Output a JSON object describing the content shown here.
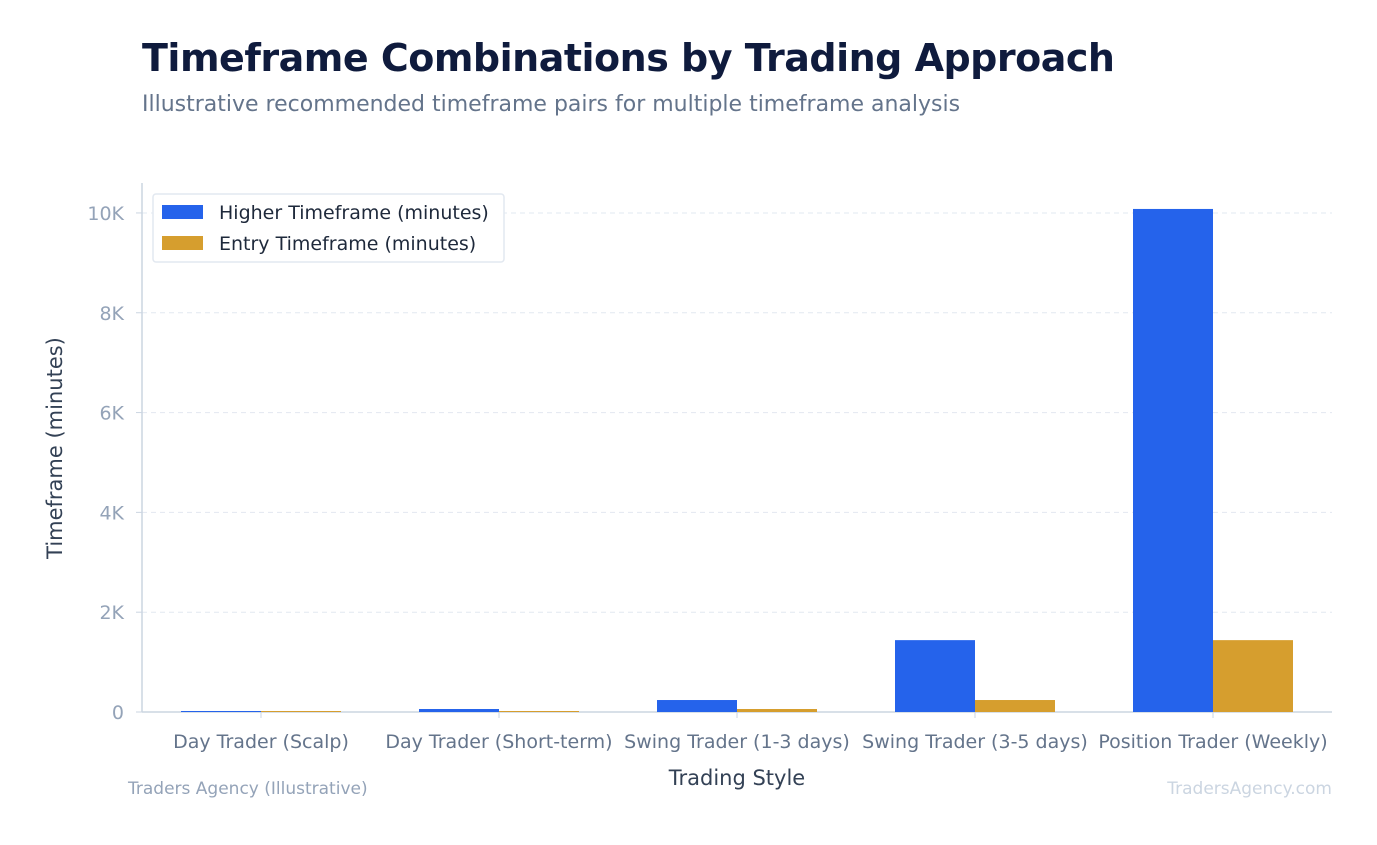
{
  "header": {
    "title": "Timeframe Combinations by Trading Approach",
    "subtitle": "Illustrative recommended timeframe pairs for multiple timeframe analysis"
  },
  "footer": {
    "source": "Traders Agency (Illustrative)",
    "brand": "TradersAgency.com"
  },
  "chart_data": {
    "type": "bar",
    "title": "Timeframe Combinations by Trading Approach",
    "subtitle": "Illustrative recommended timeframe pairs for multiple timeframe analysis",
    "xlabel": "Trading Style",
    "ylabel": "Timeframe (minutes)",
    "categories": [
      "Day Trader (Scalp)",
      "Day Trader (Short-term)",
      "Swing Trader (1-3 days)",
      "Swing Trader (3-5 days)",
      "Position Trader (Weekly)"
    ],
    "series": [
      {
        "name": "Higher Timeframe (minutes)",
        "color": "#2563eb",
        "values": [
          15,
          60,
          240,
          1440,
          10080
        ]
      },
      {
        "name": "Entry Timeframe (minutes)",
        "color": "#d69e2e",
        "values": [
          1,
          15,
          60,
          240,
          1440
        ]
      }
    ],
    "ylim": [
      0,
      10600
    ],
    "yticks": [
      0,
      2000,
      4000,
      6000,
      8000,
      10000
    ],
    "ytick_labels": [
      "0",
      "2K",
      "4K",
      "6K",
      "8K",
      "10K"
    ],
    "grid": true,
    "legend_position": "top-left"
  }
}
